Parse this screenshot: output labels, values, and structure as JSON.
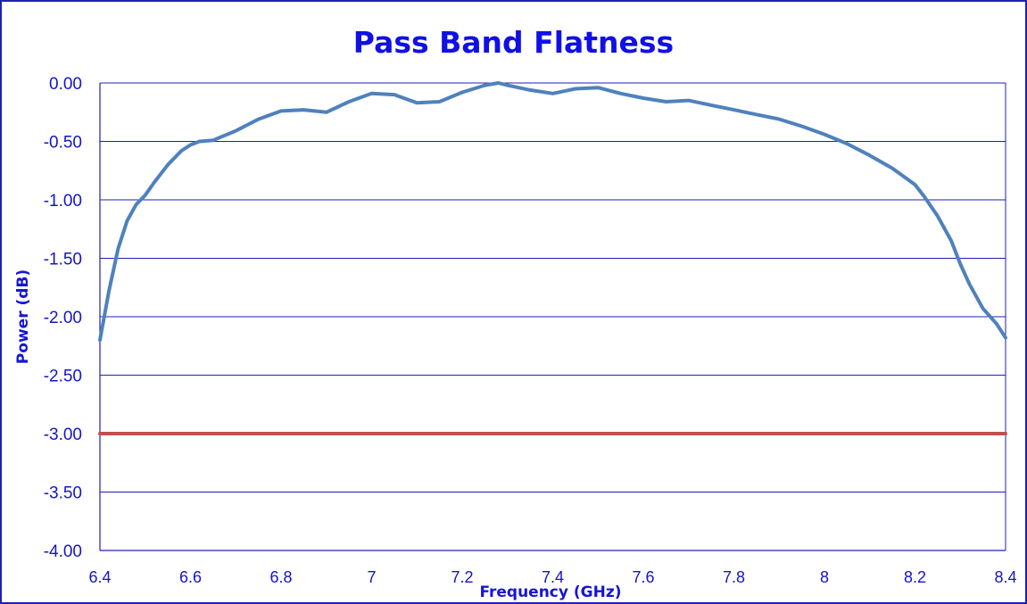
{
  "chart_data": {
    "type": "line",
    "title": "Pass Band Flatness",
    "xlabel": "Frequency (GHz)",
    "ylabel": "Power (dB)",
    "xlim": [
      6.4,
      8.4
    ],
    "ylim": [
      -4.0,
      0.0
    ],
    "x_ticks": [
      "6.4",
      "6.6",
      "6.8",
      "7",
      "7.2",
      "7.4",
      "7.6",
      "7.8",
      "8",
      "8.2",
      "8.4"
    ],
    "y_ticks": [
      "0.00",
      "-0.50",
      "-1.00",
      "-1.50",
      "-2.00",
      "-2.50",
      "-3.00",
      "-3.50",
      "-4.00"
    ],
    "grid": "horizontal",
    "legend": "none",
    "series": [
      {
        "color": "#4f81bd",
        "x": [
          6.4,
          6.42,
          6.44,
          6.46,
          6.48,
          6.5,
          6.52,
          6.55,
          6.58,
          6.6,
          6.62,
          6.65,
          6.7,
          6.75,
          6.8,
          6.85,
          6.9,
          6.95,
          7.0,
          7.05,
          7.1,
          7.15,
          7.2,
          7.25,
          7.28,
          7.3,
          7.35,
          7.4,
          7.45,
          7.5,
          7.55,
          7.6,
          7.65,
          7.7,
          7.75,
          7.8,
          7.85,
          7.9,
          7.95,
          8.0,
          8.05,
          8.1,
          8.15,
          8.2,
          8.22,
          8.25,
          8.28,
          8.3,
          8.32,
          8.35,
          8.38,
          8.4
        ],
        "y": [
          -2.2,
          -1.78,
          -1.42,
          -1.18,
          -1.04,
          -0.96,
          -0.85,
          -0.7,
          -0.58,
          -0.53,
          -0.5,
          -0.49,
          -0.41,
          -0.31,
          -0.24,
          -0.23,
          -0.25,
          -0.16,
          -0.09,
          -0.1,
          -0.17,
          -0.16,
          -0.08,
          -0.02,
          0.0,
          -0.02,
          -0.06,
          -0.09,
          -0.05,
          -0.04,
          -0.09,
          -0.13,
          -0.16,
          -0.15,
          -0.19,
          -0.23,
          -0.27,
          -0.31,
          -0.37,
          -0.44,
          -0.52,
          -0.62,
          -0.73,
          -0.87,
          -0.97,
          -1.14,
          -1.35,
          -1.55,
          -1.72,
          -1.93,
          -2.06,
          -2.18
        ]
      },
      {
        "color": "#c0504d",
        "x": [
          6.4,
          8.4
        ],
        "y": [
          -3.0,
          -3.0
        ]
      }
    ]
  }
}
